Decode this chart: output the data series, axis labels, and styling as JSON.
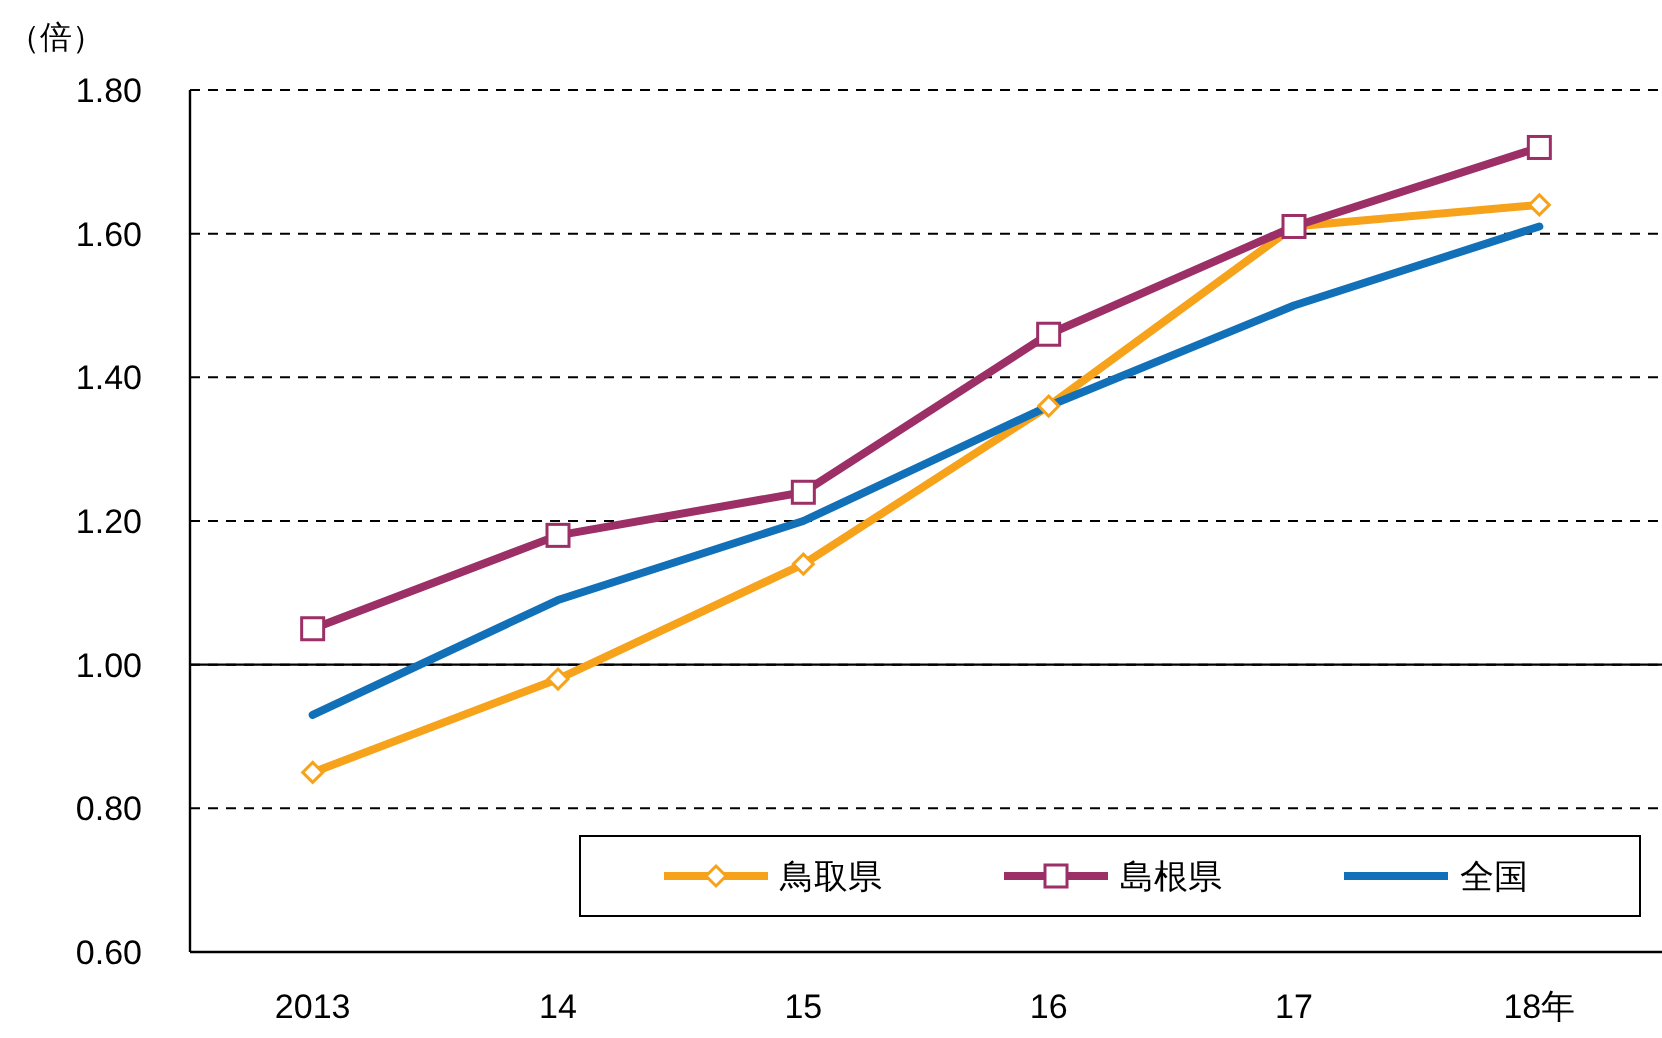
{
  "chart_data": {
    "type": "line",
    "ylabel": "（倍）",
    "categories": [
      "2013",
      "14",
      "15",
      "16",
      "17",
      "18年"
    ],
    "series": [
      {
        "name": "鳥取県",
        "color": "#f7a21b",
        "marker": "diamond",
        "values": [
          0.85,
          0.98,
          1.14,
          1.36,
          1.61,
          1.64
        ]
      },
      {
        "name": "島根県",
        "color": "#9b2f66",
        "marker": "square",
        "values": [
          1.05,
          1.18,
          1.24,
          1.46,
          1.61,
          1.72
        ]
      },
      {
        "name": "全国",
        "color": "#1170b8",
        "marker": "none",
        "values": [
          0.93,
          1.09,
          1.2,
          1.36,
          1.5,
          1.61
        ]
      }
    ],
    "ylim": [
      0.6,
      1.8
    ],
    "yticks": [
      {
        "value": 0.6,
        "label": "0.60"
      },
      {
        "value": 0.8,
        "label": "0.80"
      },
      {
        "value": 1.0,
        "label": "1.00"
      },
      {
        "value": 1.2,
        "label": "1.20"
      },
      {
        "value": 1.4,
        "label": "1.40"
      },
      {
        "value": 1.6,
        "label": "1.60"
      },
      {
        "value": 1.8,
        "label": "1.80"
      }
    ],
    "grid": "y",
    "ref_lines": [
      {
        "axis": "y",
        "value": 1.0,
        "label": null,
        "color": "#000000",
        "line_style": "solid"
      }
    ],
    "legend": "bottom right",
    "line_style": "solid"
  }
}
